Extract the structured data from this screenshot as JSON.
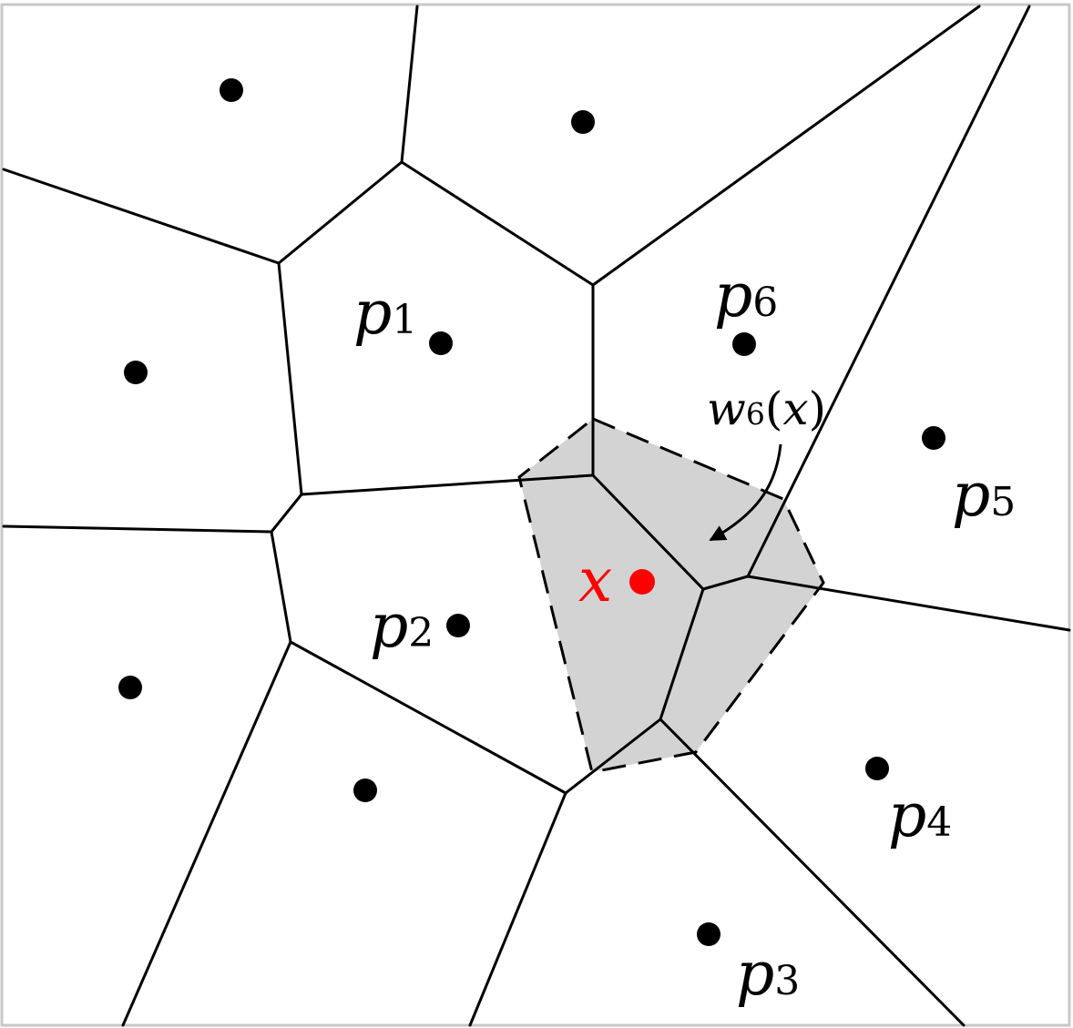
{
  "labels": {
    "p1": {
      "letter": "p",
      "index": "1"
    },
    "p2": {
      "letter": "p",
      "index": "2"
    },
    "p3": {
      "letter": "p",
      "index": "3"
    },
    "p4": {
      "letter": "p",
      "index": "4"
    },
    "p5": {
      "letter": "p",
      "index": "5"
    },
    "p6": {
      "letter": "p",
      "index": "6"
    },
    "x": {
      "text": "x",
      "color": "#ff0000"
    },
    "w6x": {
      "letter": "w",
      "index": "6",
      "open": "(",
      "arg": "x",
      "close": ")"
    }
  },
  "colors": {
    "shaded_region": "#d3d3d3",
    "edges": "#000000",
    "query_point": "#ff0000"
  }
}
